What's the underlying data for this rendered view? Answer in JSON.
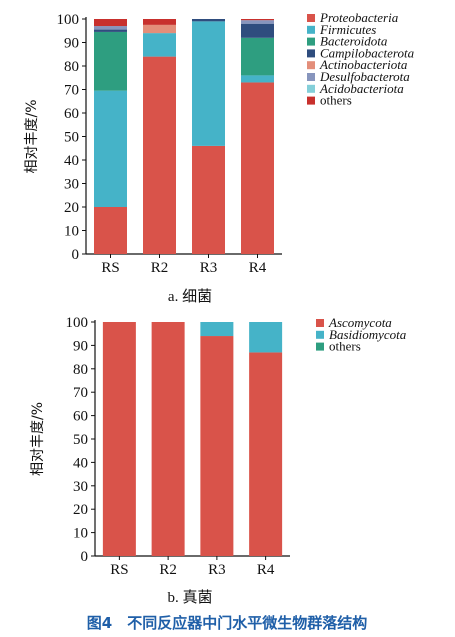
{
  "chart_data": [
    {
      "type": "bar",
      "stacked": true,
      "categories": [
        "RS",
        "R2",
        "R3",
        "R4"
      ],
      "ylabel": "相对丰度/%",
      "ylim": [
        0,
        100
      ],
      "yticks": [
        0,
        10,
        20,
        30,
        40,
        50,
        60,
        70,
        80,
        90,
        100
      ],
      "caption": "a. 细菌",
      "legend_position": "top-right",
      "series": [
        {
          "name": "Proteobacteria",
          "color": "#d9534a",
          "values": [
            20,
            84,
            46,
            73
          ]
        },
        {
          "name": "Firmicutes",
          "color": "#45b3c8",
          "values": [
            49.5,
            10,
            53,
            3
          ]
        },
        {
          "name": "Bacteroidota",
          "color": "#2e9e80",
          "values": [
            25,
            0,
            0,
            16
          ]
        },
        {
          "name": "Campilobacterota",
          "color": "#2f4d7e",
          "values": [
            1,
            0,
            1,
            6
          ]
        },
        {
          "name": "Actinobacteriota",
          "color": "#e38e7a",
          "values": [
            0,
            3.5,
            0,
            0
          ]
        },
        {
          "name": "Desulfobacterota",
          "color": "#8795bd",
          "values": [
            1.5,
            0,
            0,
            1.5
          ]
        },
        {
          "name": "Acidobacteriota",
          "color": "#84cfd9",
          "values": [
            0,
            0,
            0,
            0
          ]
        },
        {
          "name": "others",
          "color": "#c8302d",
          "values": [
            3,
            2.5,
            0,
            0.5
          ]
        }
      ]
    },
    {
      "type": "bar",
      "stacked": true,
      "categories": [
        "RS",
        "R2",
        "R3",
        "R4"
      ],
      "ylabel": "相对丰度/%",
      "ylim": [
        0,
        100
      ],
      "yticks": [
        0,
        10,
        20,
        30,
        40,
        50,
        60,
        70,
        80,
        90,
        100
      ],
      "caption": "b. 真菌",
      "legend_position": "top-right",
      "series": [
        {
          "name": "Ascomycota",
          "color": "#d9534a",
          "values": [
            100,
            100,
            94,
            87
          ]
        },
        {
          "name": "Basidiomycota",
          "color": "#45b3c8",
          "values": [
            0,
            0,
            6,
            13
          ]
        },
        {
          "name": "others",
          "color": "#2e9e80",
          "values": [
            0,
            0,
            0,
            0
          ]
        }
      ]
    }
  ],
  "figure_caption": "图4　不同反应器中门水平微生物群落结构"
}
